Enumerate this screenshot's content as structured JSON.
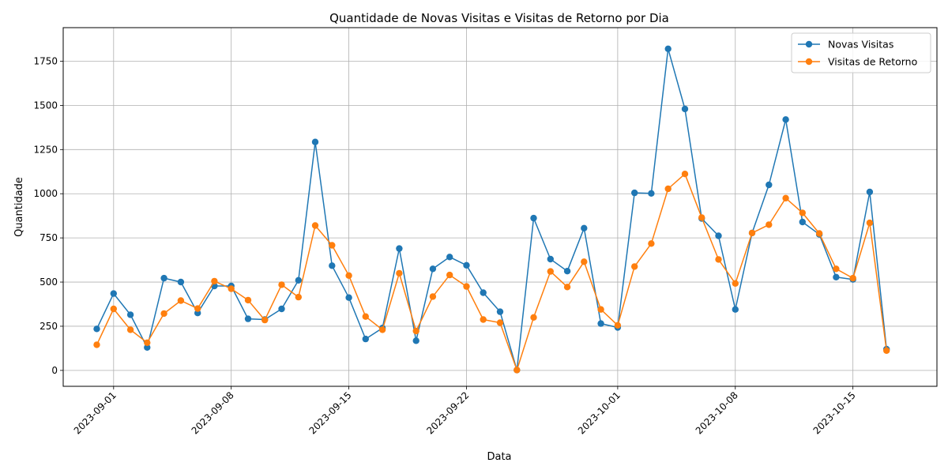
{
  "chart_data": {
    "type": "line",
    "title": "Quantidade de Novas Visitas e Visitas de Retorno por Dia",
    "xlabel": "Data",
    "ylabel": "Quantidade",
    "grid": true,
    "legend_position": "top-right",
    "x_tick_labels": [
      "2023-09-01",
      "2023-09-08",
      "2023-09-15",
      "2023-09-22",
      "2023-10-01",
      "2023-10-08",
      "2023-10-15"
    ],
    "y_ticks": [
      0,
      250,
      500,
      750,
      1000,
      1250,
      1500,
      1750
    ],
    "ylim": [
      -90,
      1940
    ],
    "xlim": [
      "2023-08-29",
      "2023-10-20"
    ],
    "x": [
      "2023-08-31",
      "2023-09-01",
      "2023-09-02",
      "2023-09-03",
      "2023-09-04",
      "2023-09-05",
      "2023-09-06",
      "2023-09-07",
      "2023-09-08",
      "2023-09-09",
      "2023-09-10",
      "2023-09-11",
      "2023-09-12",
      "2023-09-13",
      "2023-09-14",
      "2023-09-15",
      "2023-09-16",
      "2023-09-17",
      "2023-09-18",
      "2023-09-19",
      "2023-09-20",
      "2023-09-21",
      "2023-09-22",
      "2023-09-23",
      "2023-09-24",
      "2023-09-25",
      "2023-09-26",
      "2023-09-27",
      "2023-09-28",
      "2023-09-29",
      "2023-09-30",
      "2023-10-01",
      "2023-10-02",
      "2023-10-03",
      "2023-10-04",
      "2023-10-05",
      "2023-10-06",
      "2023-10-07",
      "2023-10-08",
      "2023-10-09",
      "2023-10-10",
      "2023-10-11",
      "2023-10-12",
      "2023-10-13",
      "2023-10-14",
      "2023-10-15",
      "2023-10-16",
      "2023-10-17"
    ],
    "series": [
      {
        "name": "Novas Visitas",
        "color": "#1f77b4",
        "values": [
          235,
          435,
          315,
          130,
          522,
          500,
          325,
          478,
          478,
          292,
          288,
          348,
          510,
          1293,
          593,
          412,
          178,
          240,
          690,
          168,
          575,
          642,
          595,
          440,
          332,
          2,
          862,
          630,
          562,
          805,
          265,
          243,
          1005,
          1002,
          1820,
          1480,
          860,
          762,
          345,
          778,
          1050,
          1420,
          840,
          770,
          528,
          515,
          1010,
          120
        ]
      },
      {
        "name": "Visitas de Retorno",
        "color": "#ff7f0e",
        "values": [
          145,
          348,
          230,
          157,
          322,
          395,
          350,
          505,
          462,
          398,
          285,
          485,
          415,
          820,
          708,
          537,
          305,
          230,
          550,
          223,
          418,
          540,
          475,
          288,
          270,
          2,
          300,
          560,
          472,
          615,
          345,
          255,
          588,
          718,
          1028,
          1112,
          865,
          628,
          492,
          778,
          825,
          975,
          892,
          775,
          575,
          522,
          835,
          112
        ]
      }
    ]
  }
}
